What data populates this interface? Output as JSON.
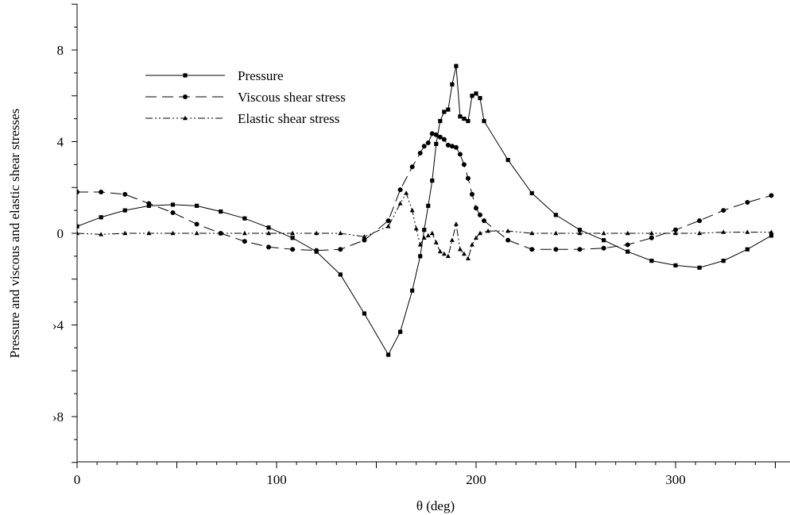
{
  "chart_data": {
    "type": "line",
    "xlabel": "θ (deg)",
    "ylabel": "Pressure and viscous and elastic shear stresses",
    "xlim": [
      0,
      355
    ],
    "ylim": [
      -10,
      10
    ],
    "x_ticks": [
      "0",
      "100",
      "200",
      "300"
    ],
    "y_ticks": [
      {
        "value": 8,
        "label": "8"
      },
      {
        "value": 4,
        "label": "4"
      },
      {
        "value": 0,
        "label": "0"
      },
      {
        "value": -4,
        "label": "›4"
      },
      {
        "value": -8,
        "label": "›8"
      }
    ],
    "grid": false,
    "legend_position": "top-left",
    "series": [
      {
        "name": "Pressure",
        "marker": "square",
        "line_style": "solid",
        "x": [
          0,
          12,
          24,
          36,
          48,
          60,
          72,
          84,
          96,
          108,
          120,
          132,
          144,
          156,
          162,
          168,
          172,
          174,
          176,
          178,
          180,
          182,
          184,
          186,
          188,
          190,
          192,
          194,
          196,
          198,
          200,
          202,
          204,
          216,
          228,
          240,
          252,
          264,
          276,
          288,
          300,
          312,
          324,
          336,
          348
        ],
        "values": [
          0.3,
          0.7,
          1.0,
          1.2,
          1.25,
          1.2,
          0.95,
          0.65,
          0.25,
          -0.2,
          -0.8,
          -1.8,
          -3.5,
          -5.3,
          -4.3,
          -2.5,
          -1.0,
          0.15,
          1.2,
          2.3,
          3.9,
          4.9,
          5.3,
          5.4,
          6.5,
          7.3,
          5.1,
          5.0,
          4.9,
          6.0,
          6.1,
          5.9,
          4.9,
          3.2,
          1.75,
          0.8,
          0.15,
          -0.3,
          -0.8,
          -1.2,
          -1.4,
          -1.5,
          -1.2,
          -0.7,
          -0.1
        ]
      },
      {
        "name": "Viscous shear stress",
        "marker": "circle",
        "line_style": "dashed",
        "x": [
          0,
          12,
          24,
          36,
          48,
          60,
          72,
          84,
          96,
          108,
          120,
          132,
          144,
          156,
          162,
          168,
          172,
          174,
          176,
          178,
          180,
          182,
          184,
          186,
          188,
          190,
          192,
          194,
          196,
          198,
          200,
          202,
          204,
          216,
          228,
          240,
          252,
          264,
          276,
          288,
          300,
          312,
          324,
          336,
          348
        ],
        "values": [
          1.8,
          1.8,
          1.7,
          1.3,
          0.9,
          0.4,
          0.0,
          -0.35,
          -0.6,
          -0.7,
          -0.75,
          -0.7,
          -0.3,
          0.55,
          1.9,
          2.9,
          3.5,
          3.8,
          3.95,
          4.35,
          4.3,
          4.2,
          4.1,
          3.85,
          3.8,
          3.75,
          3.45,
          3.0,
          2.4,
          1.7,
          1.1,
          0.8,
          0.55,
          -0.3,
          -0.7,
          -0.7,
          -0.7,
          -0.65,
          -0.5,
          -0.2,
          0.15,
          0.55,
          1.0,
          1.35,
          1.65
        ]
      },
      {
        "name": "Elastic shear stress",
        "marker": "triangle",
        "line_style": "dash-dot-dot",
        "x": [
          0,
          12,
          24,
          36,
          48,
          60,
          72,
          84,
          96,
          108,
          120,
          132,
          144,
          156,
          162,
          165,
          168,
          170,
          172,
          174,
          176,
          178,
          180,
          182,
          184,
          186,
          188,
          190,
          192,
          194,
          196,
          198,
          200,
          202,
          206,
          216,
          228,
          240,
          252,
          264,
          276,
          288,
          300,
          312,
          324,
          336,
          348
        ],
        "values": [
          0.0,
          -0.05,
          0.0,
          0.0,
          0.0,
          0.0,
          0.0,
          0.0,
          0.0,
          0.0,
          0.0,
          0.0,
          -0.15,
          0.3,
          1.3,
          1.75,
          1.0,
          0.2,
          -0.5,
          -0.2,
          -0.1,
          0.0,
          -0.4,
          -0.8,
          -0.9,
          -1.0,
          -0.3,
          0.4,
          -0.7,
          -0.9,
          -1.1,
          -0.5,
          -0.2,
          0.0,
          0.1,
          0.1,
          0.0,
          0.0,
          0.0,
          0.0,
          0.0,
          0.0,
          0.0,
          0.0,
          0.05,
          0.05,
          0.05
        ]
      }
    ]
  }
}
